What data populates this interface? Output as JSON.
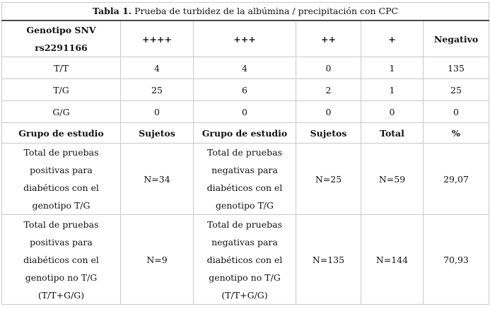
{
  "caption": {
    "label": "Tabla 1.",
    "text": " Prueba de turbidez de la albúmina / precipitación con CPC"
  },
  "header1": {
    "col1_line1": "Genotipo SNV",
    "col1_line2": "rs2291166",
    "cols": [
      "++++",
      "+++",
      "++",
      "+",
      "Negativo"
    ]
  },
  "genotype_rows": [
    {
      "genotype": "T/T",
      "values": [
        "4",
        "4",
        "0",
        "1",
        "135"
      ]
    },
    {
      "genotype": "T/G",
      "values": [
        "25",
        "6",
        "2",
        "1",
        "25"
      ]
    },
    {
      "genotype": "G/G",
      "values": [
        "0",
        "0",
        "0",
        "0",
        "0"
      ]
    }
  ],
  "header2": [
    "Grupo de estudio",
    "Sujetos",
    "Grupo de estudio",
    "Sujetos",
    "Total",
    "%"
  ],
  "study_rows": [
    {
      "group1": [
        "Total de pruebas",
        "positivas para",
        "diabéticos con el",
        "genotipo T/G"
      ],
      "subjects1": "N=34",
      "group2": [
        "Total de pruebas",
        "negativas para",
        "diabéticos con el",
        "genotipo T/G"
      ],
      "subjects2": "N=25",
      "total": "N=59",
      "percent": "29,07"
    },
    {
      "group1": [
        "Total de pruebas",
        "positivas para",
        "diabéticos con el",
        "genotipo no T/G",
        "(T/T+G/G)"
      ],
      "subjects1": "N=9",
      "group2": [
        "Total de pruebas",
        "negativas para",
        "diabéticos con el",
        "genotipo no T/G",
        "(T/T+G/G)"
      ],
      "subjects2": "N=135",
      "total": "N=144",
      "percent": "70,93"
    }
  ]
}
